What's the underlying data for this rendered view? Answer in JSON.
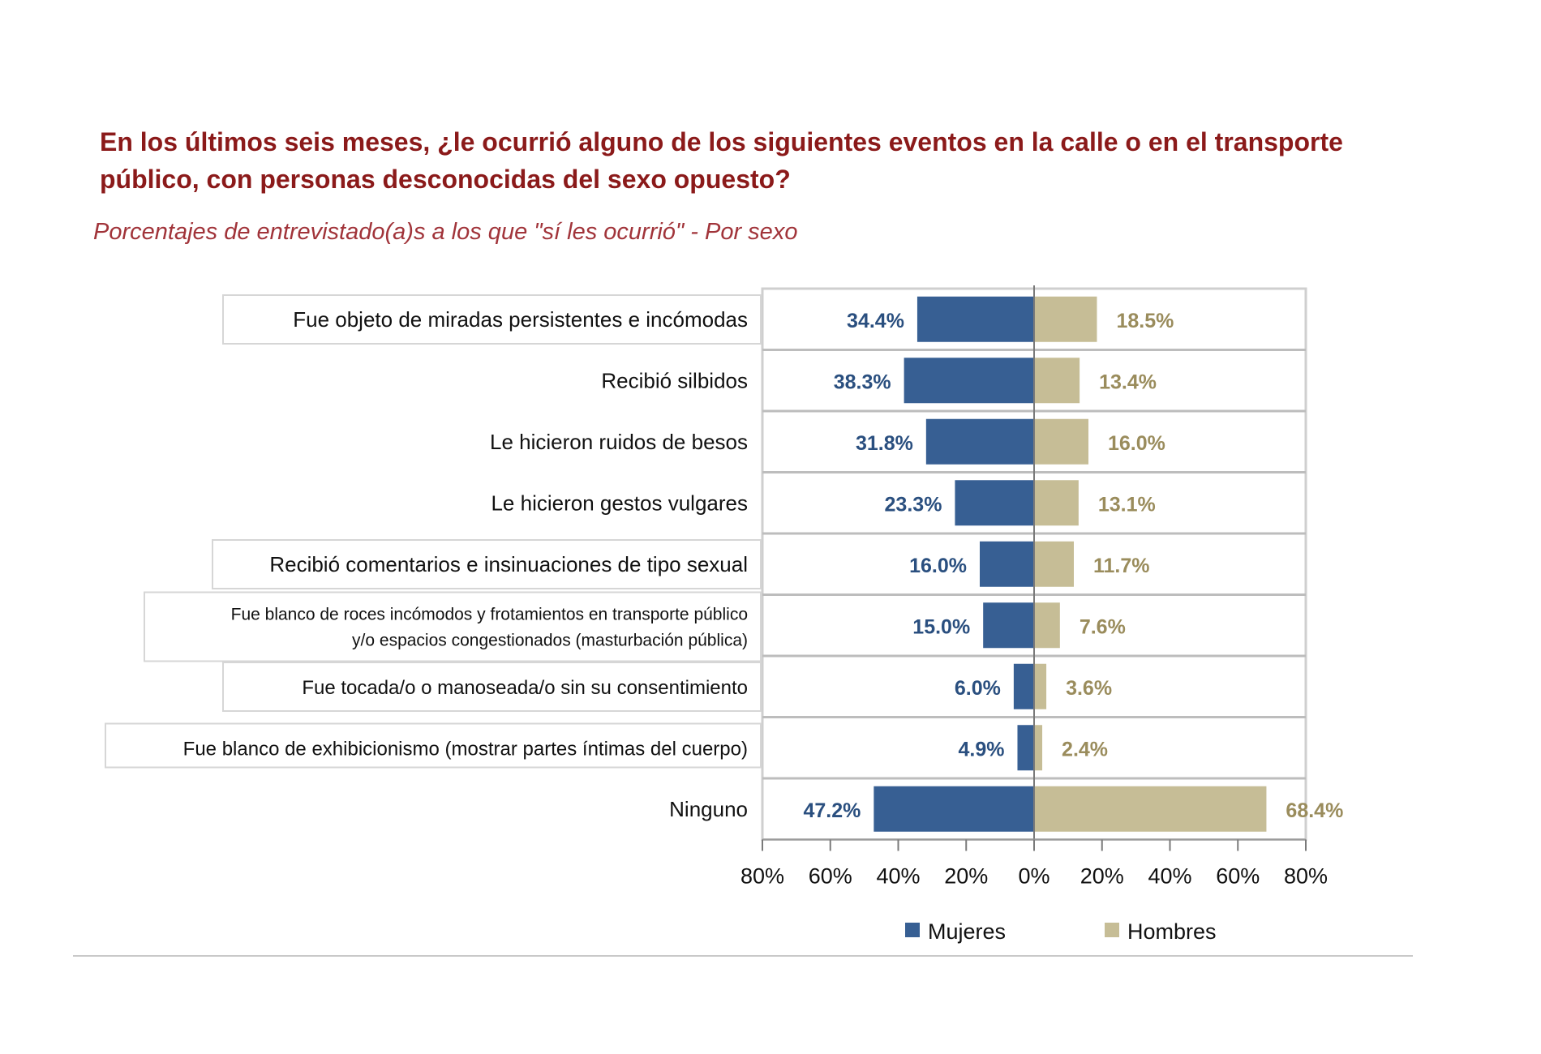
{
  "title": "En los últimos seis meses, ¿le ocurrió alguno de los siguientes eventos en la calle o en el transporte público, con personas desconocidas del sexo opuesto?",
  "subtitle": "Porcentajes de entrevistado(a)s a los que \"sí les ocurrió\" - Por sexo",
  "colors": {
    "mujeres": "#375f93",
    "hombres": "#c6bd96",
    "mujeres_text": "#2a4f7f",
    "hombres_text": "#9a8c5c",
    "title": "#8b1a1a"
  },
  "chart_data": {
    "type": "bar",
    "orientation": "horizontal-diverging",
    "categories": [
      "Fue objeto de miradas persistentes e incómodas",
      "Recibió silbidos",
      "Le hicieron ruidos de besos",
      "Le hicieron gestos vulgares",
      "Recibió comentarios e insinuaciones de tipo sexual",
      "Fue blanco de roces incómodos y frotamientos en transporte público y/o espacios congestionados  (masturbación pública)",
      "Fue tocada/o  o manoseada/o sin su consentimiento",
      "Fue blanco de exhibicionismo (mostrar partes íntimas del cuerpo)",
      "Ninguno"
    ],
    "category_lines": [
      [
        "Fue objeto de miradas persistentes e incómodas"
      ],
      [
        "Recibió silbidos"
      ],
      [
        "Le hicieron ruidos de besos"
      ],
      [
        "Le hicieron gestos vulgares"
      ],
      [
        "Recibió comentarios e insinuaciones de tipo sexual"
      ],
      [
        "Fue blanco de roces incómodos y frotamientos en transporte público",
        "y/o espacios congestionados  (masturbación pública)"
      ],
      [
        "Fue tocada/o  o manoseada/o sin su consentimiento"
      ],
      [
        "Fue blanco de exhibicionismo (mostrar partes íntimas del cuerpo)"
      ],
      [
        "Ninguno"
      ]
    ],
    "series": [
      {
        "name": "Mujeres",
        "side": "left",
        "values": [
          34.4,
          38.3,
          31.8,
          23.3,
          16.0,
          15.0,
          6.0,
          4.9,
          47.2
        ],
        "labels": [
          "34.4%",
          "38.3%",
          "31.8%",
          "23.3%",
          "16.0%",
          "15.0%",
          "6.0%",
          "4.9%",
          "47.2%"
        ]
      },
      {
        "name": "Hombres",
        "side": "right",
        "values": [
          18.5,
          13.4,
          16.0,
          13.1,
          11.7,
          7.6,
          3.6,
          2.4,
          68.4
        ],
        "labels": [
          "18.5%",
          "13.4%",
          "16.0%",
          "13.1%",
          "11.7%",
          "7.6%",
          "3.6%",
          "2.4%",
          "68.4%"
        ]
      }
    ],
    "xlim": [
      -80,
      80
    ],
    "ticks": [
      -80,
      -60,
      -40,
      -20,
      0,
      20,
      40,
      60,
      80
    ],
    "tick_labels": [
      "80%",
      "60%",
      "40%",
      "20%",
      "0%",
      "20%",
      "40%",
      "60%",
      "80%"
    ],
    "legend": [
      "Mujeres",
      "Hombres"
    ],
    "legend_position": "bottom"
  }
}
